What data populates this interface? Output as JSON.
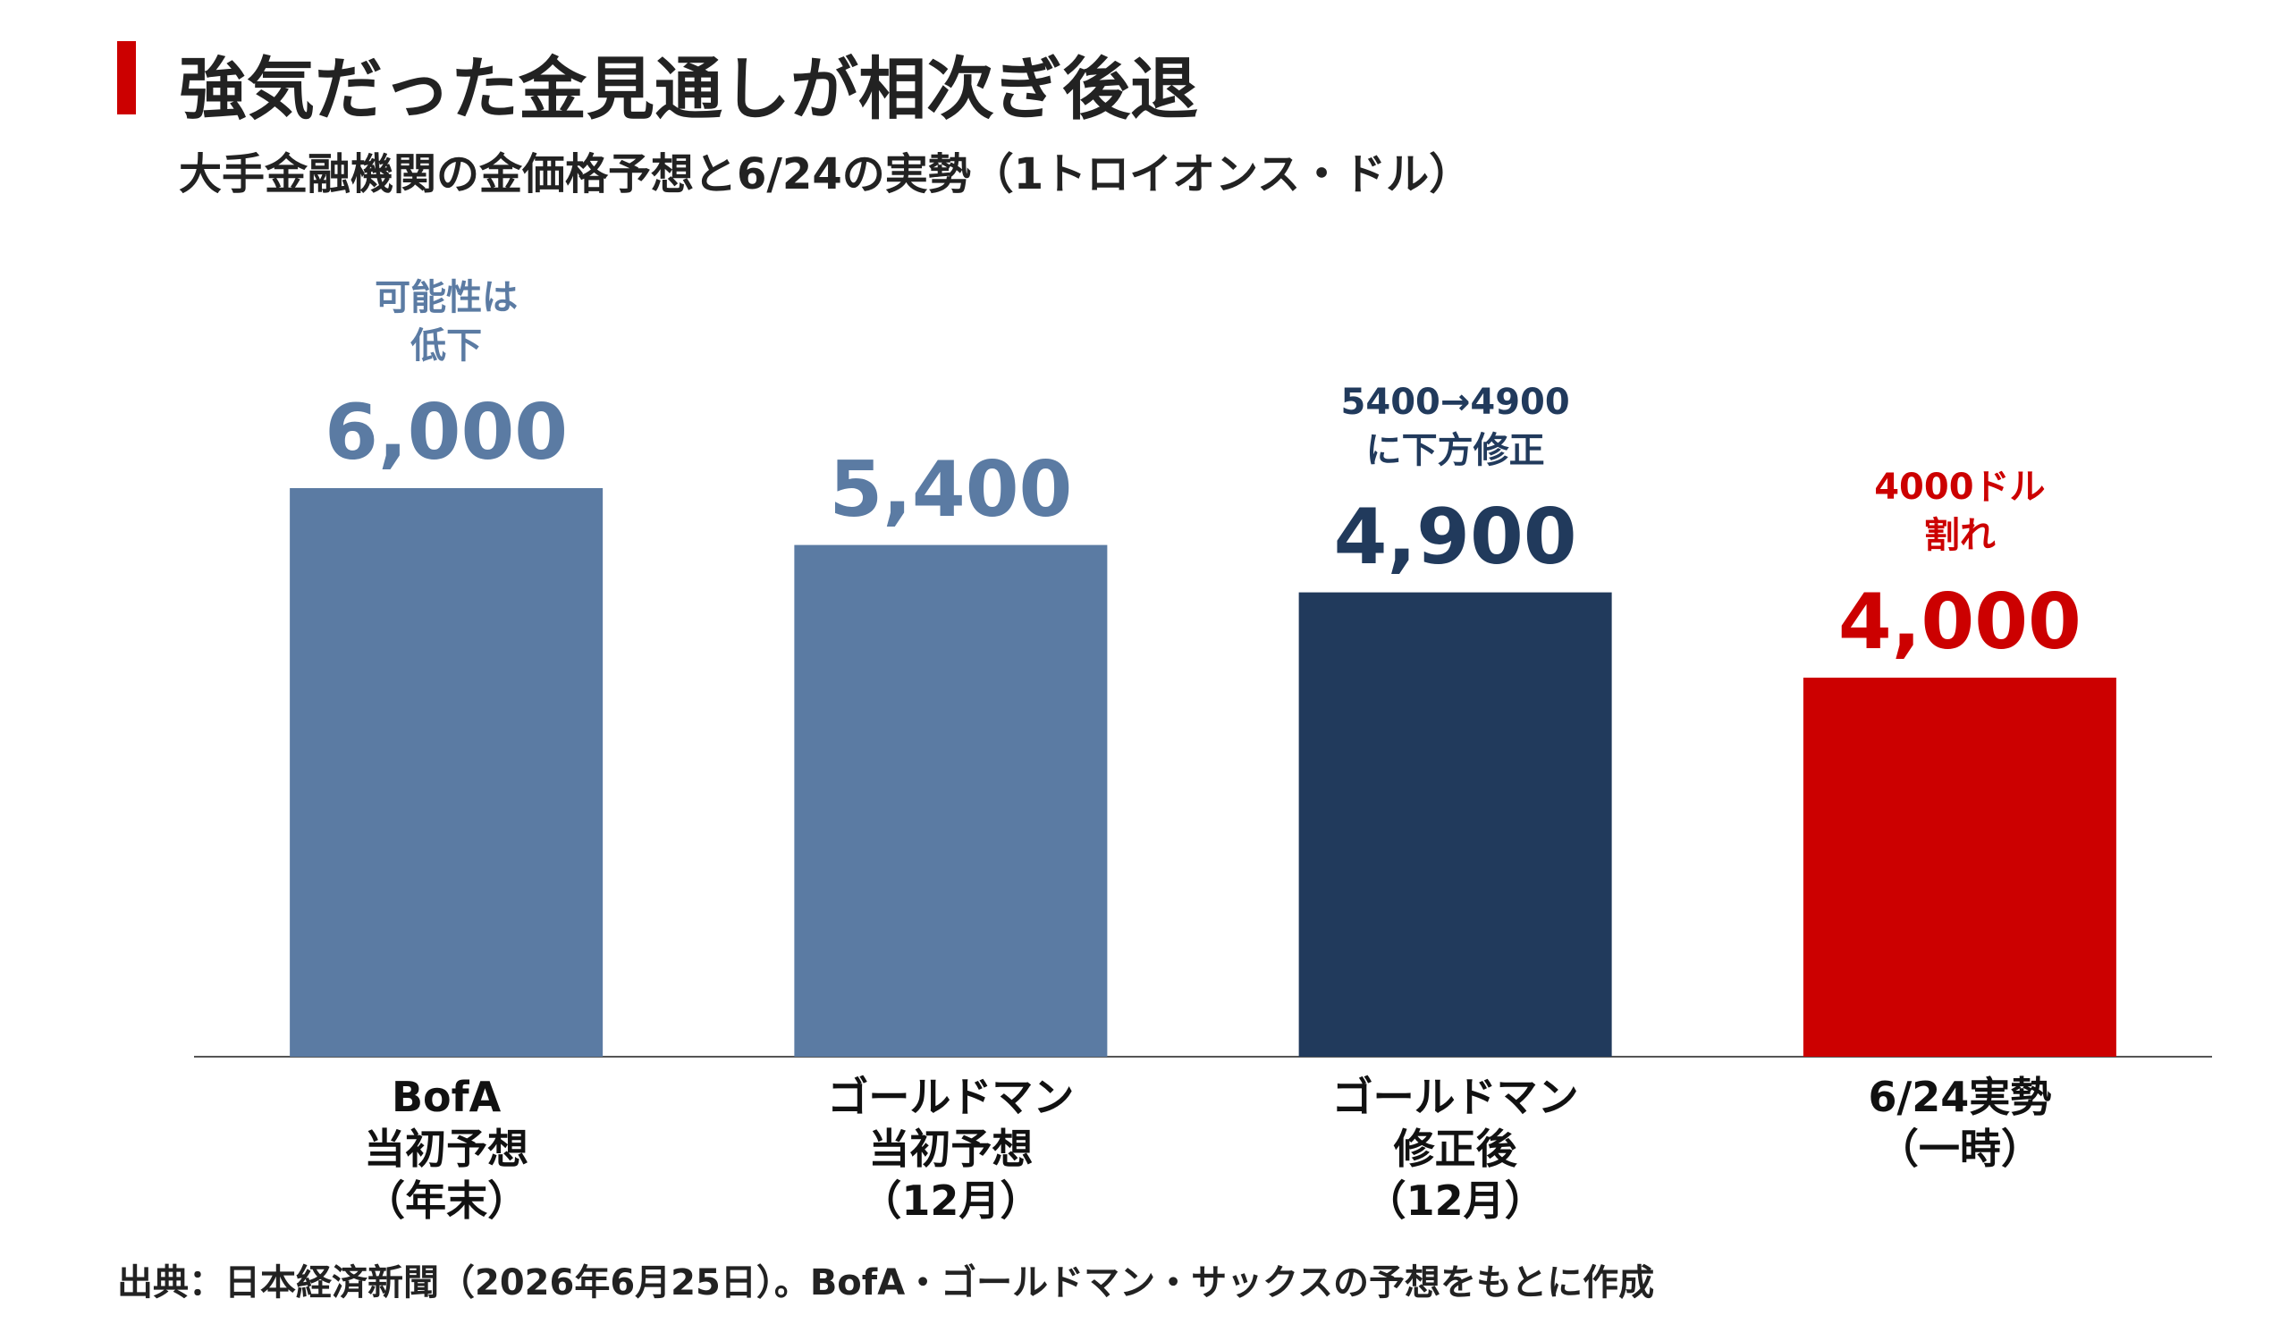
{
  "chart_data": {
    "type": "bar",
    "title": "強気だった金見通しが相次ぎ後退",
    "subtitle": "大手金融機関の金価格予想と6/24の実勢（1トロイオンス・ドル）",
    "source": "出典：日本経済新聞（2026年6月25日）。BofA・ゴールドマン・サックスの予想をもとに作成",
    "categories": [
      "BofA\n当初予想\n（年末）",
      "ゴールドマン\n当初予想\n（12月）",
      "ゴールドマン\n修正後\n（12月）",
      "6/24実勢\n（一時）"
    ],
    "values": [
      6000,
      5400,
      4900,
      4000
    ],
    "value_labels": [
      "6,000",
      "5,400",
      "4,900",
      "4,000"
    ],
    "colors": [
      "#5b7ba3",
      "#5b7ba3",
      "#213a5c",
      "#cc0000"
    ],
    "annotations": [
      "可能性は\n低下",
      null,
      "5400→4900\nに下方修正",
      "4000ドル\n割れ"
    ]
  }
}
